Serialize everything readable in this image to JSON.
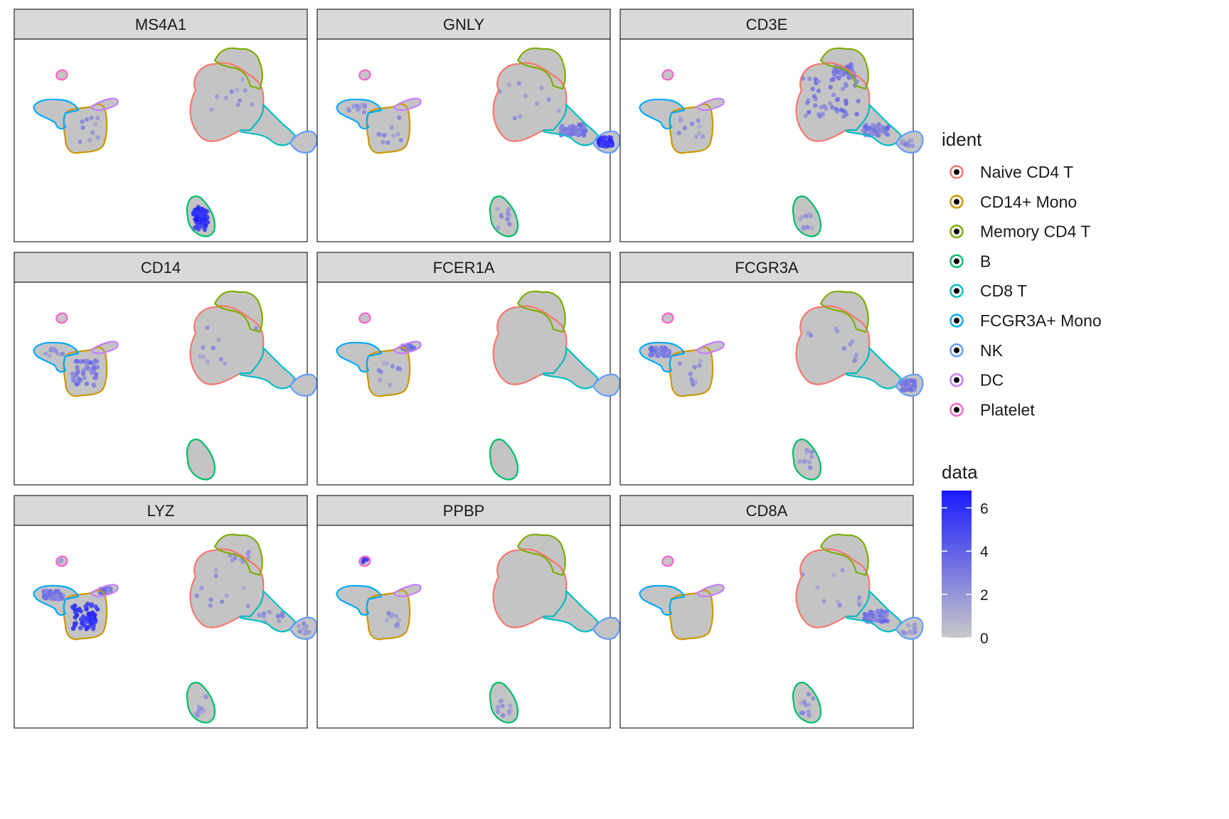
{
  "chart_data": {
    "type": "scatter",
    "layout": "facet-grid-3x3",
    "facets": [
      {
        "gene": "MS4A1",
        "high": [
          "B"
        ],
        "mid": [],
        "low": [
          "Naive CD4 T",
          "CD14+ Mono"
        ]
      },
      {
        "gene": "GNLY",
        "high": [
          "NK"
        ],
        "mid": [
          "CD8 T"
        ],
        "low": [
          "Naive CD4 T",
          "CD14+ Mono",
          "FCGR3A+ Mono",
          "B"
        ]
      },
      {
        "gene": "CD3E",
        "high": [],
        "mid": [
          "Naive CD4 T",
          "Memory CD4 T",
          "CD8 T"
        ],
        "low": [
          "NK",
          "B",
          "CD14+ Mono"
        ]
      },
      {
        "gene": "CD14",
        "high": [],
        "mid": [
          "CD14+ Mono"
        ],
        "low": [
          "FCGR3A+ Mono",
          "Naive CD4 T"
        ]
      },
      {
        "gene": "FCER1A",
        "high": [],
        "mid": [
          "DC"
        ],
        "low": [
          "CD14+ Mono"
        ]
      },
      {
        "gene": "FCGR3A",
        "high": [],
        "mid": [
          "FCGR3A+ Mono",
          "NK"
        ],
        "low": [
          "CD14+ Mono",
          "Naive CD4 T",
          "B"
        ]
      },
      {
        "gene": "LYZ",
        "high": [
          "CD14+ Mono"
        ],
        "mid": [
          "FCGR3A+ Mono",
          "DC"
        ],
        "low": [
          "Naive CD4 T",
          "Memory CD4 T",
          "CD8 T",
          "NK",
          "B",
          "Platelet"
        ]
      },
      {
        "gene": "PPBP",
        "high": [
          "Platelet"
        ],
        "mid": [],
        "low": [
          "CD14+ Mono",
          "B"
        ]
      },
      {
        "gene": "CD8A",
        "high": [],
        "mid": [
          "CD8 T"
        ],
        "low": [
          "Naive CD4 T",
          "NK",
          "B"
        ]
      }
    ],
    "clusters": [
      {
        "name": "Naive CD4 T",
        "color": "#F8766D"
      },
      {
        "name": "CD14+ Mono",
        "color": "#CD9600"
      },
      {
        "name": "Memory CD4 T",
        "color": "#7CAE00"
      },
      {
        "name": "B",
        "color": "#00BE67"
      },
      {
        "name": "CD8 T",
        "color": "#00BFC4"
      },
      {
        "name": "FCGR3A+ Mono",
        "color": "#00A9FF"
      },
      {
        "name": "NK",
        "color": "#619CFF"
      },
      {
        "name": "DC",
        "color": "#C77CFF"
      },
      {
        "name": "Platelet",
        "color": "#FF61CC"
      }
    ],
    "legend": {
      "ident_title": "ident",
      "data_title": "data",
      "position": "right",
      "colorbar_ticks": [
        "0",
        "2",
        "4",
        "6"
      ],
      "colorbar_range": [
        0,
        6.8
      ],
      "low_color": "#c8c8c8",
      "high_color": "#1a1aff"
    },
    "grid": false
  }
}
